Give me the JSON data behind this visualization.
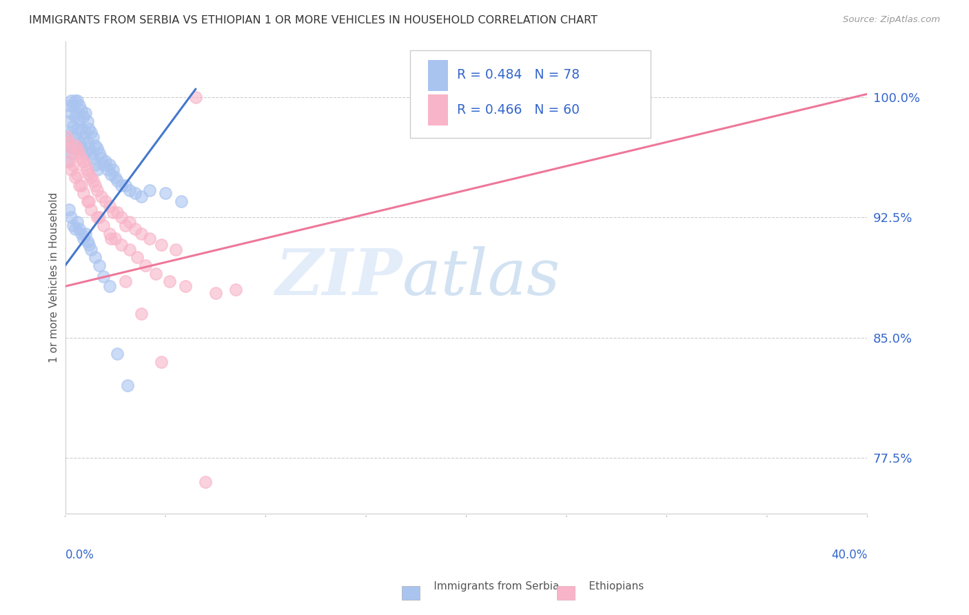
{
  "title": "IMMIGRANTS FROM SERBIA VS ETHIOPIAN 1 OR MORE VEHICLES IN HOUSEHOLD CORRELATION CHART",
  "source": "Source: ZipAtlas.com",
  "ylabel": "1 or more Vehicles in Household",
  "ytick_vals": [
    0.775,
    0.85,
    0.925,
    1.0
  ],
  "ytick_labels": [
    "77.5%",
    "85.0%",
    "92.5%",
    "100.0%"
  ],
  "serbia_R": 0.484,
  "serbia_N": 78,
  "ethiopia_R": 0.466,
  "ethiopia_N": 60,
  "serbia_color": "#aac4f0",
  "ethiopia_color": "#f8b4c8",
  "serbia_line_color": "#4477cc",
  "ethiopia_line_color": "#ee7799",
  "legend_text_color": "#3366cc",
  "watermark_zip": "ZIP",
  "watermark_atlas": "atlas",
  "xmin": 0.0,
  "xmax": 0.4,
  "ymin": 0.74,
  "ymax": 1.035,
  "grid_color": "#cccccc",
  "background_color": "#ffffff",
  "serbia_line_x0": 0.0,
  "serbia_line_x1": 0.065,
  "serbia_line_y0": 0.895,
  "serbia_line_y1": 1.005,
  "ethiopia_line_x0": 0.0,
  "ethiopia_line_x1": 0.4,
  "ethiopia_line_y0": 0.882,
  "ethiopia_line_y1": 1.002
}
